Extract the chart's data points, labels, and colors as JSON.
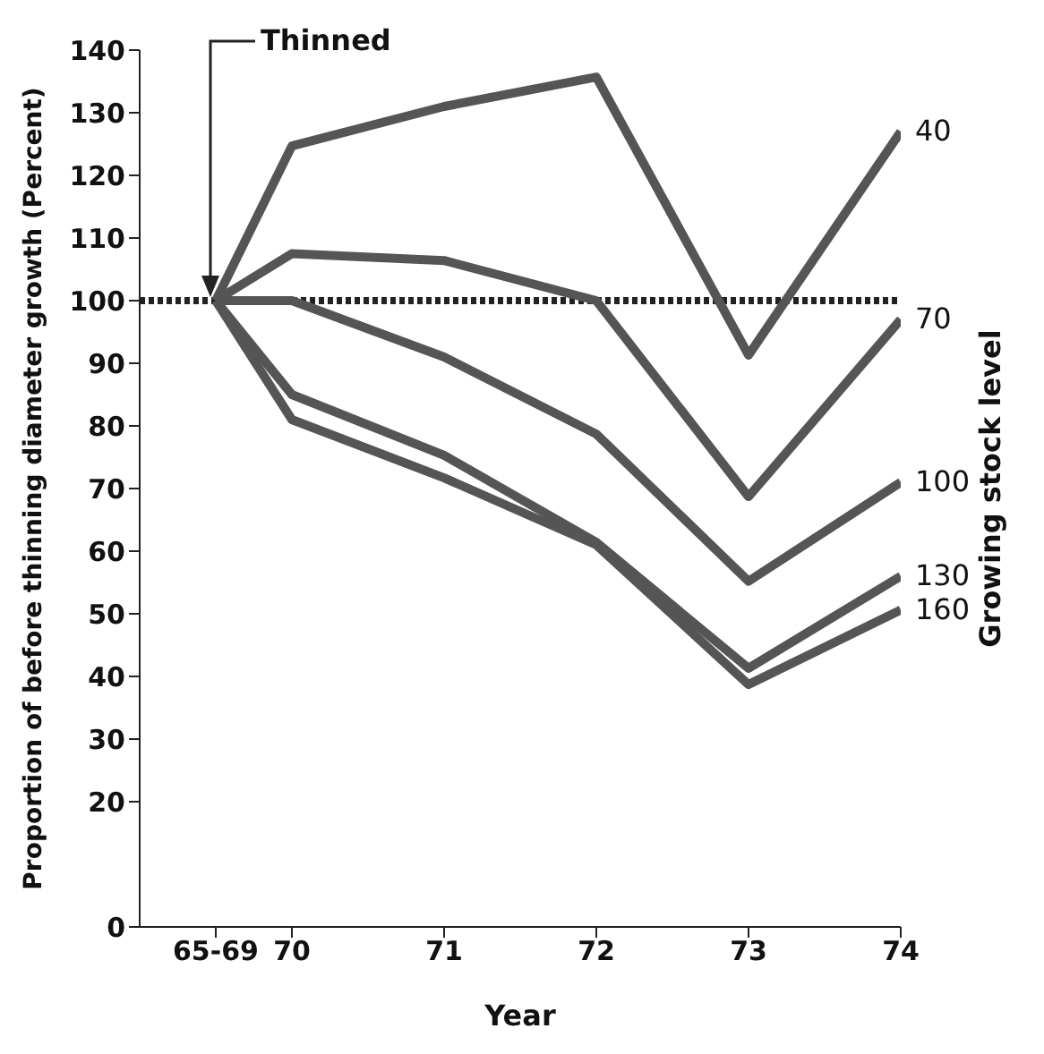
{
  "chart_data": {
    "type": "line",
    "xlabel": "Year",
    "ylabel": "Proportion of before thinning diameter growth (Percent)",
    "y2label": "Growing stock level",
    "x": [
      69.5,
      70,
      71,
      72,
      73,
      74
    ],
    "xlim": [
      69,
      74
    ],
    "xticks": [
      {
        "value": 69.5,
        "label": "65-69"
      },
      70,
      71,
      72,
      73,
      74
    ],
    "ylim": [
      0,
      140
    ],
    "yticks": [
      0,
      20,
      30,
      40,
      50,
      60,
      70,
      80,
      90,
      100,
      110,
      120,
      130,
      140
    ],
    "series": [
      {
        "name": "40",
        "color": "#555555",
        "values": [
          100,
          124.7,
          131,
          135.7,
          91.3,
          127
        ]
      },
      {
        "name": "70",
        "color": "#555555",
        "values": [
          100,
          107.5,
          106.4,
          100,
          68.7,
          97
        ]
      },
      {
        "name": "100",
        "color": "#555555",
        "values": [
          100,
          100,
          91,
          78.7,
          55.2,
          71
        ]
      },
      {
        "name": "130",
        "color": "#555555",
        "values": [
          100,
          85,
          75.3,
          61.4,
          41.3,
          56
        ]
      },
      {
        "name": "160",
        "color": "#555555",
        "values": [
          100,
          81,
          71.7,
          61,
          38.7,
          50.6
        ]
      }
    ],
    "ref_lines": [
      {
        "axis": "y",
        "value": 100,
        "color": "#222222",
        "line_style": "dotted"
      }
    ],
    "annotations": [
      {
        "text": "Thinned",
        "x": 69.5,
        "y": 100
      }
    ],
    "marker": "none",
    "line_style": "solid"
  }
}
